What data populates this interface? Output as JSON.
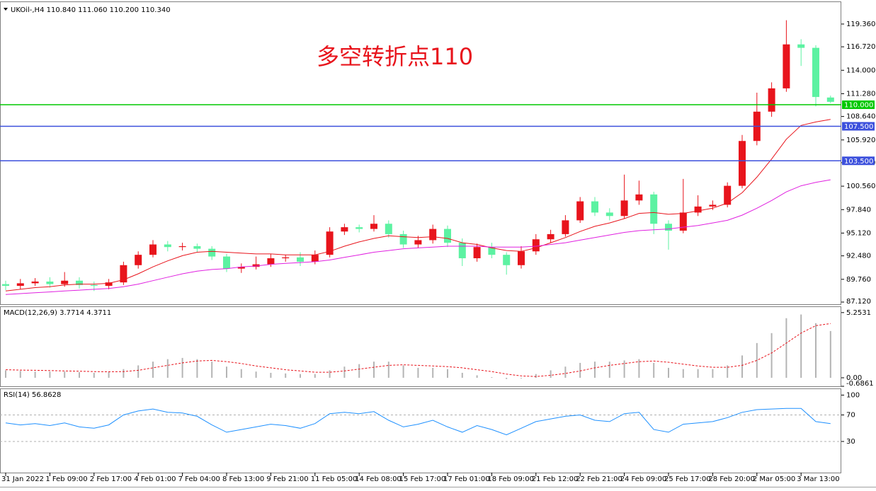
{
  "chart_data": [
    {
      "type": "candlestick",
      "title": "UKOil-,H4 110.840 111.060 110.200 110.340",
      "annotation": "多空转折点110",
      "categories": [
        "31 Jan 2022",
        null,
        null,
        "1 Feb 09:00",
        null,
        null,
        "2 Feb 17:00",
        null,
        null,
        "4 Feb 01:00",
        null,
        null,
        "7 Feb 04:00",
        null,
        null,
        "8 Feb 13:00",
        null,
        null,
        "9 Feb 21:00",
        null,
        null,
        "11 Feb 05:00",
        null,
        null,
        "14 Feb 08:00",
        null,
        null,
        "15 Feb 17:00",
        null,
        null,
        "17 Feb 01:00",
        null,
        null,
        "18 Feb 09:00",
        null,
        null,
        "21 Feb 12:00",
        null,
        null,
        "22 Feb 21:00",
        null,
        null,
        "24 Feb 09:00",
        null,
        null,
        "25 Feb 17:00",
        null,
        null,
        "28 Feb 20:00",
        null,
        null,
        "2 Mar 05:00",
        null,
        null,
        "3 Mar 13:00",
        null,
        null
      ],
      "open": [
        89.2,
        89.0,
        89.3,
        89.5,
        89.2,
        89.6,
        89.1,
        89.0,
        89.4,
        91.4,
        92.6,
        93.8,
        93.5,
        93.6,
        93.3,
        92.4,
        91.0,
        91.2,
        91.5,
        92.2,
        92.3,
        91.8,
        92.6,
        95.3,
        95.8,
        95.6,
        96.2,
        95.0,
        93.8,
        94.3,
        95.6,
        94.0,
        92.2,
        93.5,
        92.6,
        91.4,
        93.0,
        94.4,
        95.0,
        96.6,
        98.8,
        97.5,
        97.1,
        98.9,
        99.6,
        96.2,
        95.4,
        97.5,
        98.2,
        98.4,
        100.6,
        105.8,
        109.2,
        111.9,
        117.0,
        116.6,
        110.84
      ],
      "high": [
        89.6,
        89.8,
        89.9,
        90.0,
        90.6,
        90.0,
        89.5,
        89.8,
        91.8,
        93.0,
        94.3,
        94.2,
        94.0,
        93.9,
        93.6,
        92.7,
        91.6,
        92.4,
        92.7,
        92.6,
        92.9,
        93.1,
        95.8,
        96.2,
        96.1,
        97.2,
        96.6,
        95.4,
        94.8,
        96.1,
        96.0,
        94.5,
        93.9,
        94.0,
        92.9,
        93.6,
        95.0,
        95.5,
        97.2,
        99.3,
        99.3,
        98.0,
        101.9,
        101.2,
        99.9,
        96.6,
        101.4,
        99.5,
        98.9,
        101.0,
        106.5,
        111.4,
        112.6,
        119.8,
        117.6,
        116.9,
        111.06
      ],
      "low": [
        88.5,
        88.6,
        89.0,
        88.8,
        88.9,
        88.7,
        88.4,
        88.6,
        89.1,
        91.0,
        92.3,
        93.0,
        93.1,
        92.9,
        92.0,
        90.6,
        90.5,
        90.9,
        91.2,
        91.8,
        91.3,
        91.5,
        92.3,
        94.9,
        95.2,
        95.3,
        94.6,
        93.4,
        93.4,
        93.9,
        93.5,
        91.3,
        91.8,
        92.2,
        90.3,
        91.0,
        92.6,
        94.0,
        94.7,
        96.3,
        97.1,
        96.6,
        96.8,
        98.4,
        95.0,
        93.2,
        95.1,
        97.1,
        97.8,
        98.1,
        100.3,
        105.3,
        108.6,
        111.5,
        114.5,
        109.8,
        110.2
      ],
      "close": [
        89.0,
        89.3,
        89.5,
        89.2,
        89.6,
        89.1,
        89.0,
        89.4,
        91.4,
        92.6,
        93.8,
        93.5,
        93.6,
        93.3,
        92.4,
        91.0,
        91.2,
        91.5,
        92.2,
        92.3,
        91.8,
        92.6,
        95.3,
        95.8,
        95.6,
        96.2,
        95.0,
        93.8,
        94.3,
        95.6,
        94.0,
        92.2,
        93.5,
        92.6,
        91.4,
        93.0,
        94.4,
        95.0,
        96.6,
        98.8,
        97.5,
        97.1,
        98.9,
        99.6,
        96.2,
        95.4,
        97.5,
        98.2,
        98.4,
        100.6,
        105.8,
        109.2,
        111.9,
        117.0,
        116.6,
        110.9,
        110.34
      ],
      "up_color": "#e8141c",
      "down_color": "#5cf2a2",
      "series": [
        {
          "color": "#e8141c",
          "values": [
            88.4,
            88.6,
            88.8,
            88.9,
            89.1,
            89.2,
            89.2,
            89.3,
            89.7,
            90.4,
            91.2,
            91.9,
            92.5,
            92.9,
            93.0,
            92.9,
            92.8,
            92.7,
            92.7,
            92.6,
            92.6,
            92.6,
            93.0,
            93.6,
            94.1,
            94.5,
            94.8,
            94.7,
            94.6,
            94.7,
            94.5,
            94.0,
            93.8,
            93.4,
            93.1,
            93.0,
            93.4,
            94.0,
            94.6,
            95.3,
            95.9,
            96.3,
            96.8,
            97.4,
            97.5,
            97.3,
            97.4,
            97.7,
            98.0,
            98.6,
            99.8,
            101.6,
            103.7,
            106.0,
            107.6,
            108.0,
            108.3
          ]
        },
        {
          "color": "#e020e0",
          "values": [
            88.0,
            88.1,
            88.2,
            88.3,
            88.4,
            88.5,
            88.6,
            88.7,
            88.9,
            89.2,
            89.6,
            90.0,
            90.4,
            90.7,
            90.9,
            91.0,
            91.2,
            91.3,
            91.5,
            91.6,
            91.7,
            91.8,
            92.0,
            92.3,
            92.6,
            92.9,
            93.1,
            93.3,
            93.4,
            93.5,
            93.6,
            93.6,
            93.6,
            93.5,
            93.5,
            93.5,
            93.6,
            93.8,
            94.0,
            94.3,
            94.6,
            94.9,
            95.2,
            95.4,
            95.5,
            95.6,
            95.8,
            96.0,
            96.3,
            96.6,
            97.2,
            98.0,
            98.9,
            99.9,
            100.6,
            101.0,
            101.3
          ]
        }
      ],
      "levels": [
        {
          "value": 110,
          "label": "110.000",
          "color": "#00c800"
        },
        {
          "value": 107.5,
          "label": "107.500",
          "color": "#3c50dc"
        },
        {
          "value": 103.5,
          "label": "103.500",
          "color": "#3c50dc"
        }
      ],
      "ylim": [
        86.87,
        121.9
      ],
      "yticks": [
        {
          "value": 87.12,
          "label": "87.120"
        },
        {
          "value": 89.76,
          "label": "89.760"
        },
        {
          "value": 92.48,
          "label": "92.480"
        },
        {
          "value": 95.12,
          "label": "95.120"
        },
        {
          "value": 97.84,
          "label": "97.840"
        },
        {
          "value": 100.56,
          "label": "100.560"
        },
        {
          "value": 103.28,
          "label": "103.280"
        },
        {
          "value": 105.92,
          "label": "105.920"
        },
        {
          "value": 108.64,
          "label": "108.640"
        },
        {
          "value": 111.28,
          "label": "111.280"
        },
        {
          "value": 114,
          "label": "114.000"
        },
        {
          "value": 116.72,
          "label": "116.720"
        },
        {
          "value": 119.36,
          "label": "119.360"
        }
      ]
    },
    {
      "type": "macd",
      "title": "MACD(12,26,9) 3.7714 4.3711",
      "series": [
        {
          "style": "bar",
          "color": "#b4b4b4",
          "values": [
            0.6,
            0.55,
            0.5,
            0.5,
            0.5,
            0.45,
            0.4,
            0.45,
            0.7,
            1.0,
            1.3,
            1.5,
            1.6,
            1.5,
            1.3,
            0.9,
            0.7,
            0.5,
            0.4,
            0.35,
            0.3,
            0.3,
            0.6,
            0.9,
            1.1,
            1.3,
            1.3,
            1.0,
            0.8,
            0.8,
            0.7,
            0.4,
            0.2,
            0.05,
            -0.1,
            -0.05,
            0.3,
            0.6,
            0.9,
            1.2,
            1.3,
            1.3,
            1.4,
            1.5,
            1.2,
            0.8,
            0.7,
            0.7,
            0.7,
            1.0,
            1.8,
            2.8,
            3.6,
            4.8,
            5.1,
            4.4,
            3.7714
          ]
        },
        {
          "style": "dashed",
          "color": "#e8141c",
          "values": [
            0.65,
            0.62,
            0.6,
            0.58,
            0.55,
            0.53,
            0.5,
            0.48,
            0.5,
            0.6,
            0.8,
            1.0,
            1.2,
            1.35,
            1.4,
            1.3,
            1.15,
            0.95,
            0.8,
            0.65,
            0.55,
            0.45,
            0.45,
            0.55,
            0.7,
            0.85,
            1.0,
            1.05,
            1.0,
            0.95,
            0.9,
            0.8,
            0.65,
            0.5,
            0.3,
            0.15,
            0.1,
            0.2,
            0.35,
            0.55,
            0.8,
            1.0,
            1.15,
            1.3,
            1.35,
            1.25,
            1.1,
            0.95,
            0.85,
            0.85,
            1.0,
            1.4,
            2.0,
            2.8,
            3.6,
            4.2,
            4.3711
          ]
        }
      ],
      "ylim": [
        -0.6861,
        5.7
      ],
      "yticks": [
        5.2531,
        {
          "value": 0,
          "label": "0.00"
        },
        -0.6861
      ]
    },
    {
      "type": "line",
      "title": "RSI(14) 56.8628",
      "series": [
        {
          "color": "#1e90ff",
          "values": [
            58,
            55,
            57,
            54,
            58,
            52,
            50,
            55,
            70,
            76,
            79,
            74,
            73,
            68,
            55,
            44,
            48,
            52,
            56,
            54,
            50,
            57,
            72,
            74,
            72,
            75,
            62,
            52,
            56,
            62,
            52,
            44,
            54,
            48,
            40,
            50,
            60,
            64,
            68,
            70,
            62,
            60,
            72,
            74,
            48,
            44,
            56,
            58,
            60,
            66,
            74,
            78,
            79,
            80,
            80,
            60,
            56.8628
          ]
        }
      ],
      "levels": [
        70,
        30
      ],
      "ylim": [
        -17,
        109
      ],
      "yticks": [
        100,
        70,
        30
      ]
    }
  ]
}
